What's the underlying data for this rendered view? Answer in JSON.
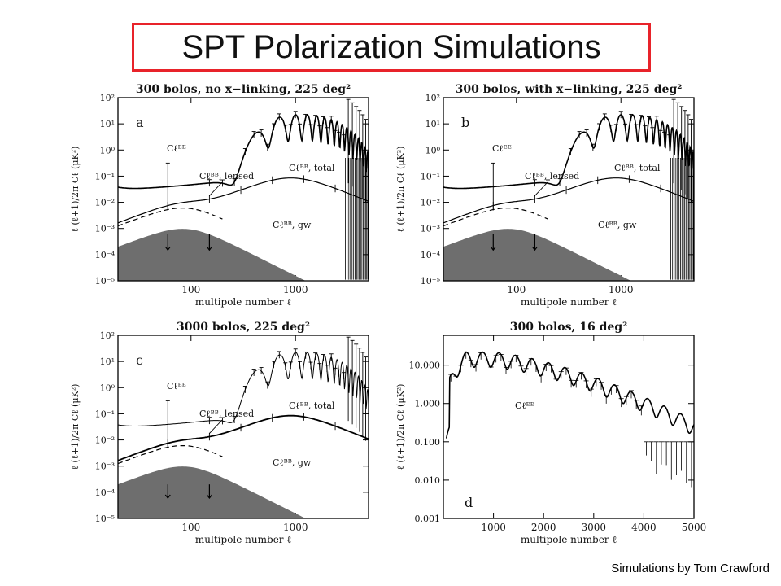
{
  "slide": {
    "title": "SPT Polarization Simulations",
    "credit": "Simulations by Tom Crawford"
  },
  "colors": {
    "title_border": "#e8232a",
    "gw_fill": "#6e6e6e",
    "curve": "#000000"
  },
  "chart_data": [
    {
      "id": "a",
      "type": "line",
      "title": "300 bolos, no x−linking, 225 deg²",
      "panel_label": "a",
      "xlabel": "multipole number ℓ",
      "ylabel": "ℓ (ℓ+1)/2π Cℓ (μK²)",
      "xscale": "log",
      "yscale": "log",
      "xlim": [
        20,
        5000
      ],
      "ylim": [
        1e-05,
        100
      ],
      "xticks": [
        "100",
        "1000"
      ],
      "yticks": [
        "10²",
        "10¹",
        "10⁰",
        "10⁻¹",
        "10⁻²",
        "10⁻³",
        "10⁻⁴",
        "10⁻⁵"
      ],
      "labels": {
        "ee": "Cℓᴱᴱ",
        "bb_lensed": "Cℓᴮᴮ, lensed",
        "bb_total": "Cℓᴮᴮ, total",
        "bb_gw": "Cℓᴮᴮ, gw"
      }
    },
    {
      "id": "b",
      "type": "line",
      "title": "300 bolos, with x−linking, 225 deg²",
      "panel_label": "b",
      "xlabel": "multipole number ℓ",
      "ylabel": "ℓ (ℓ+1)/2π Cℓ (μK²)",
      "xscale": "log",
      "yscale": "log",
      "xlim": [
        20,
        5000
      ],
      "ylim": [
        1e-05,
        100
      ],
      "xticks": [
        "100",
        "1000"
      ],
      "yticks": [
        "10²",
        "10¹",
        "10⁰",
        "10⁻¹",
        "10⁻²",
        "10⁻³",
        "10⁻⁴",
        "10⁻⁵"
      ],
      "labels": {
        "ee": "Cℓᴱᴱ",
        "bb_lensed": "Cℓᴮᴮ, lensed",
        "bb_total": "Cℓᴮᴮ, total",
        "bb_gw": "Cℓᴮᴮ, gw"
      }
    },
    {
      "id": "c",
      "type": "line",
      "title": "3000 bolos, 225 deg²",
      "panel_label": "c",
      "xlabel": "multipole number ℓ",
      "ylabel": "ℓ (ℓ+1)/2π Cℓ (μK²)",
      "xscale": "log",
      "yscale": "log",
      "xlim": [
        20,
        5000
      ],
      "ylim": [
        1e-05,
        100
      ],
      "xticks": [
        "100",
        "1000"
      ],
      "yticks": [
        "10²",
        "10¹",
        "10⁰",
        "10⁻¹",
        "10⁻²",
        "10⁻³",
        "10⁻⁴",
        "10⁻⁵"
      ],
      "labels": {
        "ee": "Cℓᴱᴱ",
        "bb_lensed": "Cℓᴮᴮ, lensed",
        "bb_total": "Cℓᴮᴮ, total",
        "bb_gw": "Cℓᴮᴮ, gw"
      }
    },
    {
      "id": "d",
      "type": "line",
      "title": "300 bolos, 16 deg²",
      "panel_label": "d",
      "xlabel": "multipole number ℓ",
      "ylabel": "ℓ (ℓ+1)/2π Cℓ (μK²)",
      "xscale": "linear",
      "yscale": "log",
      "xlim": [
        0,
        5000
      ],
      "ylim": [
        0.001,
        60
      ],
      "xticks": [
        "1000",
        "2000",
        "3000",
        "4000",
        "5000"
      ],
      "yticks": [
        "10.000",
        "1.000",
        "0.100",
        "0.010",
        "0.001"
      ],
      "labels": {
        "ee": "Cℓᴱᴱ"
      }
    }
  ]
}
